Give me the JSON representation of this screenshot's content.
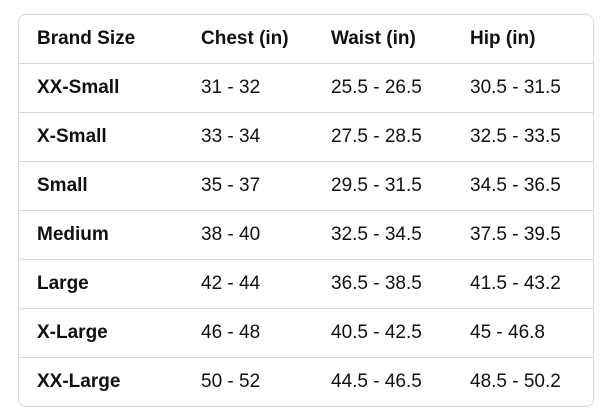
{
  "table": {
    "header": [
      "Brand Size",
      "Chest (in)",
      "Waist (in)",
      "Hip (in)"
    ],
    "rows": [
      [
        "XX-Small",
        "31 - 32",
        "25.5 - 26.5",
        "30.5 - 31.5"
      ],
      [
        "X-Small",
        "33 - 34",
        "27.5 - 28.5",
        "32.5 - 33.5"
      ],
      [
        "Small",
        "35 - 37",
        "29.5 - 31.5",
        "34.5 - 36.5"
      ],
      [
        "Medium",
        "38 - 40",
        "32.5 - 34.5",
        "37.5 - 39.5"
      ],
      [
        "Large",
        "42 - 44",
        "36.5 - 38.5",
        "41.5 - 43.2"
      ],
      [
        "X-Large",
        "46 - 48",
        "40.5 - 42.5",
        "45 - 46.8"
      ],
      [
        "XX-Large",
        "50 - 52",
        "44.5 - 46.5",
        "48.5 - 50.2"
      ]
    ]
  }
}
